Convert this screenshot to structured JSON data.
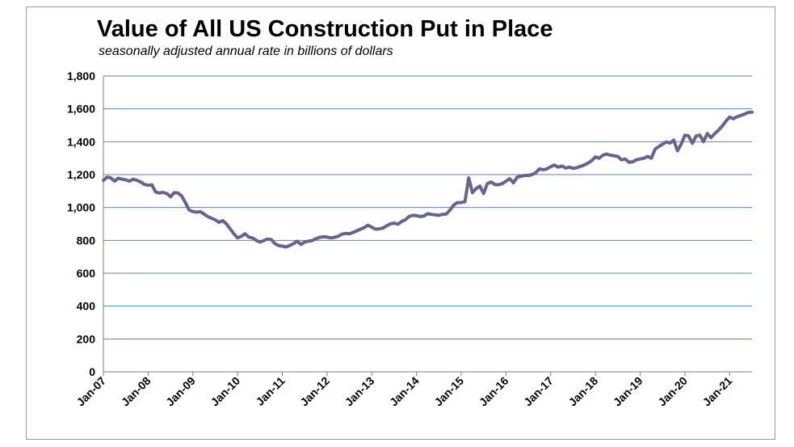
{
  "chart_data": {
    "type": "line",
    "title": "Value of All US Construction Put in Place",
    "subtitle": "seasonally adjusted annual rate in billions of dollars",
    "xlabel": "",
    "ylabel": "",
    "ylim": [
      0,
      1800
    ],
    "yticks": [
      "0",
      "200",
      "400",
      "600",
      "800",
      "1,000",
      "1,200",
      "1,400",
      "1,600",
      "1,800"
    ],
    "yticks_values": [
      0,
      200,
      400,
      600,
      800,
      1000,
      1200,
      1400,
      1600,
      1800
    ],
    "xticks": [
      "Jan-07",
      "Jan-08",
      "Jan-09",
      "Jan-10",
      "Jan-11",
      "Jan-12",
      "Jan-13",
      "Jan-14",
      "Jan-15",
      "Jan-16",
      "Jan-17",
      "Jan-18",
      "Jan-19",
      "Jan-20",
      "Jan-21"
    ],
    "xlim": [
      "2007-01",
      "2021-07"
    ],
    "grid": true,
    "legend": "none",
    "line_color": "#64648f",
    "series": [
      {
        "points": [
          [
            "2007-01",
            1165
          ],
          [
            "2007-02",
            1185
          ],
          [
            "2007-03",
            1180
          ],
          [
            "2007-04",
            1160
          ],
          [
            "2007-05",
            1178
          ],
          [
            "2007-06",
            1172
          ],
          [
            "2007-07",
            1168
          ],
          [
            "2007-08",
            1160
          ],
          [
            "2007-09",
            1172
          ],
          [
            "2007-10",
            1165
          ],
          [
            "2007-11",
            1155
          ],
          [
            "2007-12",
            1140
          ],
          [
            "2008-01",
            1135
          ],
          [
            "2008-02",
            1138
          ],
          [
            "2008-03",
            1095
          ],
          [
            "2008-04",
            1088
          ],
          [
            "2008-05",
            1092
          ],
          [
            "2008-06",
            1085
          ],
          [
            "2008-07",
            1065
          ],
          [
            "2008-08",
            1090
          ],
          [
            "2008-09",
            1088
          ],
          [
            "2008-10",
            1070
          ],
          [
            "2008-11",
            1030
          ],
          [
            "2008-12",
            985
          ],
          [
            "2009-01",
            975
          ],
          [
            "2009-02",
            972
          ],
          [
            "2009-03",
            975
          ],
          [
            "2009-04",
            960
          ],
          [
            "2009-05",
            945
          ],
          [
            "2009-06",
            935
          ],
          [
            "2009-07",
            925
          ],
          [
            "2009-08",
            910
          ],
          [
            "2009-09",
            920
          ],
          [
            "2009-10",
            900
          ],
          [
            "2009-11",
            870
          ],
          [
            "2009-12",
            840
          ],
          [
            "2010-01",
            815
          ],
          [
            "2010-02",
            825
          ],
          [
            "2010-03",
            840
          ],
          [
            "2010-04",
            820
          ],
          [
            "2010-05",
            815
          ],
          [
            "2010-06",
            800
          ],
          [
            "2010-07",
            790
          ],
          [
            "2010-08",
            798
          ],
          [
            "2010-09",
            808
          ],
          [
            "2010-10",
            805
          ],
          [
            "2010-11",
            780
          ],
          [
            "2010-12",
            768
          ],
          [
            "2011-01",
            765
          ],
          [
            "2011-02",
            760
          ],
          [
            "2011-03",
            768
          ],
          [
            "2011-04",
            780
          ],
          [
            "2011-05",
            795
          ],
          [
            "2011-06",
            775
          ],
          [
            "2011-07",
            790
          ],
          [
            "2011-08",
            795
          ],
          [
            "2011-09",
            798
          ],
          [
            "2011-10",
            810
          ],
          [
            "2011-11",
            818
          ],
          [
            "2011-12",
            822
          ],
          [
            "2012-01",
            820
          ],
          [
            "2012-02",
            815
          ],
          [
            "2012-03",
            818
          ],
          [
            "2012-04",
            825
          ],
          [
            "2012-05",
            838
          ],
          [
            "2012-06",
            842
          ],
          [
            "2012-07",
            840
          ],
          [
            "2012-08",
            848
          ],
          [
            "2012-09",
            858
          ],
          [
            "2012-10",
            868
          ],
          [
            "2012-11",
            878
          ],
          [
            "2012-12",
            892
          ],
          [
            "2013-01",
            880
          ],
          [
            "2013-02",
            868
          ],
          [
            "2013-03",
            870
          ],
          [
            "2013-04",
            875
          ],
          [
            "2013-05",
            888
          ],
          [
            "2013-06",
            900
          ],
          [
            "2013-07",
            905
          ],
          [
            "2013-08",
            898
          ],
          [
            "2013-09",
            915
          ],
          [
            "2013-10",
            925
          ],
          [
            "2013-11",
            945
          ],
          [
            "2013-12",
            952
          ],
          [
            "2014-01",
            950
          ],
          [
            "2014-02",
            945
          ],
          [
            "2014-03",
            948
          ],
          [
            "2014-04",
            962
          ],
          [
            "2014-05",
            958
          ],
          [
            "2014-06",
            955
          ],
          [
            "2014-07",
            952
          ],
          [
            "2014-08",
            958
          ],
          [
            "2014-09",
            960
          ],
          [
            "2014-10",
            985
          ],
          [
            "2014-11",
            1015
          ],
          [
            "2014-12",
            1030
          ],
          [
            "2015-01",
            1030
          ],
          [
            "2015-02",
            1035
          ],
          [
            "2015-03",
            1180
          ],
          [
            "2015-04",
            1090
          ],
          [
            "2015-05",
            1115
          ],
          [
            "2015-06",
            1130
          ],
          [
            "2015-07",
            1085
          ],
          [
            "2015-08",
            1145
          ],
          [
            "2015-09",
            1155
          ],
          [
            "2015-10",
            1140
          ],
          [
            "2015-11",
            1138
          ],
          [
            "2015-12",
            1145
          ],
          [
            "2016-01",
            1160
          ],
          [
            "2016-02",
            1175
          ],
          [
            "2016-03",
            1150
          ],
          [
            "2016-04",
            1185
          ],
          [
            "2016-05",
            1190
          ],
          [
            "2016-06",
            1195
          ],
          [
            "2016-07",
            1195
          ],
          [
            "2016-08",
            1200
          ],
          [
            "2016-09",
            1212
          ],
          [
            "2016-10",
            1235
          ],
          [
            "2016-11",
            1230
          ],
          [
            "2016-12",
            1235
          ],
          [
            "2017-01",
            1248
          ],
          [
            "2017-02",
            1258
          ],
          [
            "2017-03",
            1245
          ],
          [
            "2017-04",
            1252
          ],
          [
            "2017-05",
            1240
          ],
          [
            "2017-06",
            1245
          ],
          [
            "2017-07",
            1238
          ],
          [
            "2017-08",
            1242
          ],
          [
            "2017-09",
            1250
          ],
          [
            "2017-10",
            1258
          ],
          [
            "2017-11",
            1270
          ],
          [
            "2017-12",
            1285
          ],
          [
            "2018-01",
            1308
          ],
          [
            "2018-02",
            1300
          ],
          [
            "2018-03",
            1318
          ],
          [
            "2018-04",
            1325
          ],
          [
            "2018-05",
            1318
          ],
          [
            "2018-06",
            1315
          ],
          [
            "2018-07",
            1310
          ],
          [
            "2018-08",
            1290
          ],
          [
            "2018-09",
            1295
          ],
          [
            "2018-10",
            1275
          ],
          [
            "2018-11",
            1278
          ],
          [
            "2018-12",
            1290
          ],
          [
            "2019-01",
            1295
          ],
          [
            "2019-02",
            1300
          ],
          [
            "2019-03",
            1310
          ],
          [
            "2019-04",
            1300
          ],
          [
            "2019-05",
            1355
          ],
          [
            "2019-06",
            1370
          ],
          [
            "2019-07",
            1385
          ],
          [
            "2019-08",
            1398
          ],
          [
            "2019-09",
            1392
          ],
          [
            "2019-10",
            1410
          ],
          [
            "2019-11",
            1345
          ],
          [
            "2019-12",
            1385
          ],
          [
            "2020-01",
            1440
          ],
          [
            "2020-02",
            1435
          ],
          [
            "2020-03",
            1390
          ],
          [
            "2020-04",
            1435
          ],
          [
            "2020-05",
            1440
          ],
          [
            "2020-06",
            1400
          ],
          [
            "2020-07",
            1450
          ],
          [
            "2020-08",
            1425
          ],
          [
            "2020-09",
            1450
          ],
          [
            "2020-10",
            1470
          ],
          [
            "2020-11",
            1495
          ],
          [
            "2020-12",
            1525
          ],
          [
            "2021-01",
            1550
          ],
          [
            "2021-02",
            1540
          ],
          [
            "2021-03",
            1552
          ],
          [
            "2021-04",
            1560
          ],
          [
            "2021-05",
            1568
          ],
          [
            "2021-06",
            1578
          ],
          [
            "2021-07",
            1580
          ]
        ]
      }
    ]
  }
}
